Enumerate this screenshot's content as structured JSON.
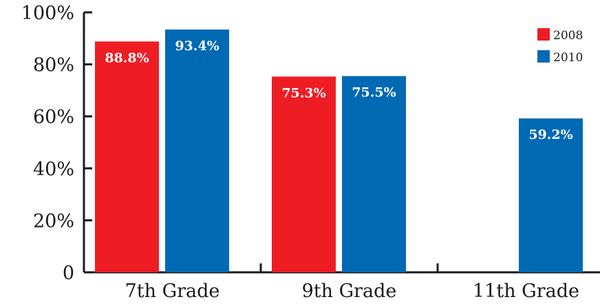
{
  "chart_data": {
    "type": "bar",
    "title": "",
    "xlabel": "",
    "ylabel": "",
    "categories": [
      "7th Grade",
      "9th Grade",
      "11th Grade"
    ],
    "ylim": [
      0,
      100
    ],
    "yticks": [
      0,
      20,
      40,
      60,
      80,
      100
    ],
    "ytick_labels": [
      "0",
      "20%",
      "40%",
      "60%",
      "80%",
      "100%"
    ],
    "grid": false,
    "legend_position": "top-right",
    "series": [
      {
        "name": "2008",
        "color": "#ee1d24",
        "values": [
          88.8,
          75.3,
          null
        ],
        "labels": [
          "88.8%",
          "75.3%",
          null
        ]
      },
      {
        "name": "2010",
        "color": "#0069b4",
        "values": [
          93.4,
          75.5,
          59.2
        ],
        "labels": [
          "93.4%",
          "75.5%",
          "59.2%"
        ]
      }
    ]
  }
}
